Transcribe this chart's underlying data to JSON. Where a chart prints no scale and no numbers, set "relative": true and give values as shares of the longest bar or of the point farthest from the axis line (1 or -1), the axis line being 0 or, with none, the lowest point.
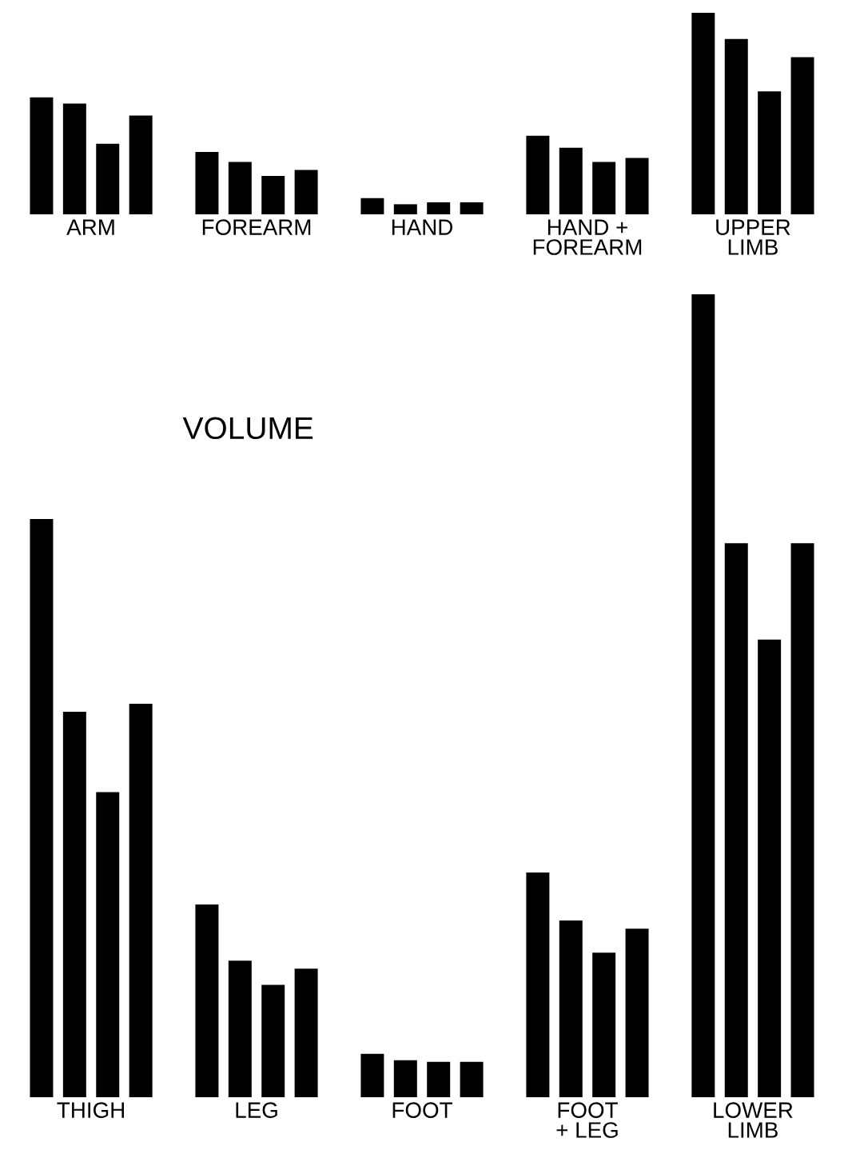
{
  "chart_data": [
    {
      "type": "bar",
      "relative": true,
      "categories": [
        "ARM",
        "FOREARM",
        "HAND",
        "HAND +\nFOREARM",
        "UPPER\nLIMB"
      ],
      "series": [
        {
          "color": "#000000",
          "values": [
            0.58,
            0.31,
            0.08,
            0.39,
            1
          ]
        },
        {
          "color": "#000000",
          "values": [
            0.55,
            0.26,
            0.05,
            0.33,
            0.87
          ]
        },
        {
          "color": "#000000",
          "values": [
            0.35,
            0.19,
            0.06,
            0.26,
            0.61
          ]
        },
        {
          "color": "#000000",
          "values": [
            0.49,
            0.22,
            0.06,
            0.28,
            0.78
          ]
        }
      ],
      "grid": false,
      "legend": false
    },
    {
      "type": "bar",
      "relative": true,
      "title": "VOLUME",
      "categories": [
        "THIGH",
        "LEG",
        "FOOT",
        "FOOT\n+ LEG",
        "LOWER\nLIMB"
      ],
      "series": [
        {
          "color": "#000000",
          "values": [
            0.72,
            0.24,
            0.054,
            0.28,
            1
          ]
        },
        {
          "color": "#000000",
          "values": [
            0.48,
            0.17,
            0.046,
            0.22,
            0.69
          ]
        },
        {
          "color": "#000000",
          "values": [
            0.38,
            0.14,
            0.044,
            0.18,
            0.57
          ]
        },
        {
          "color": "#000000",
          "values": [
            0.49,
            0.16,
            0.044,
            0.21,
            0.69
          ]
        }
      ],
      "grid": false,
      "legend": false
    }
  ]
}
